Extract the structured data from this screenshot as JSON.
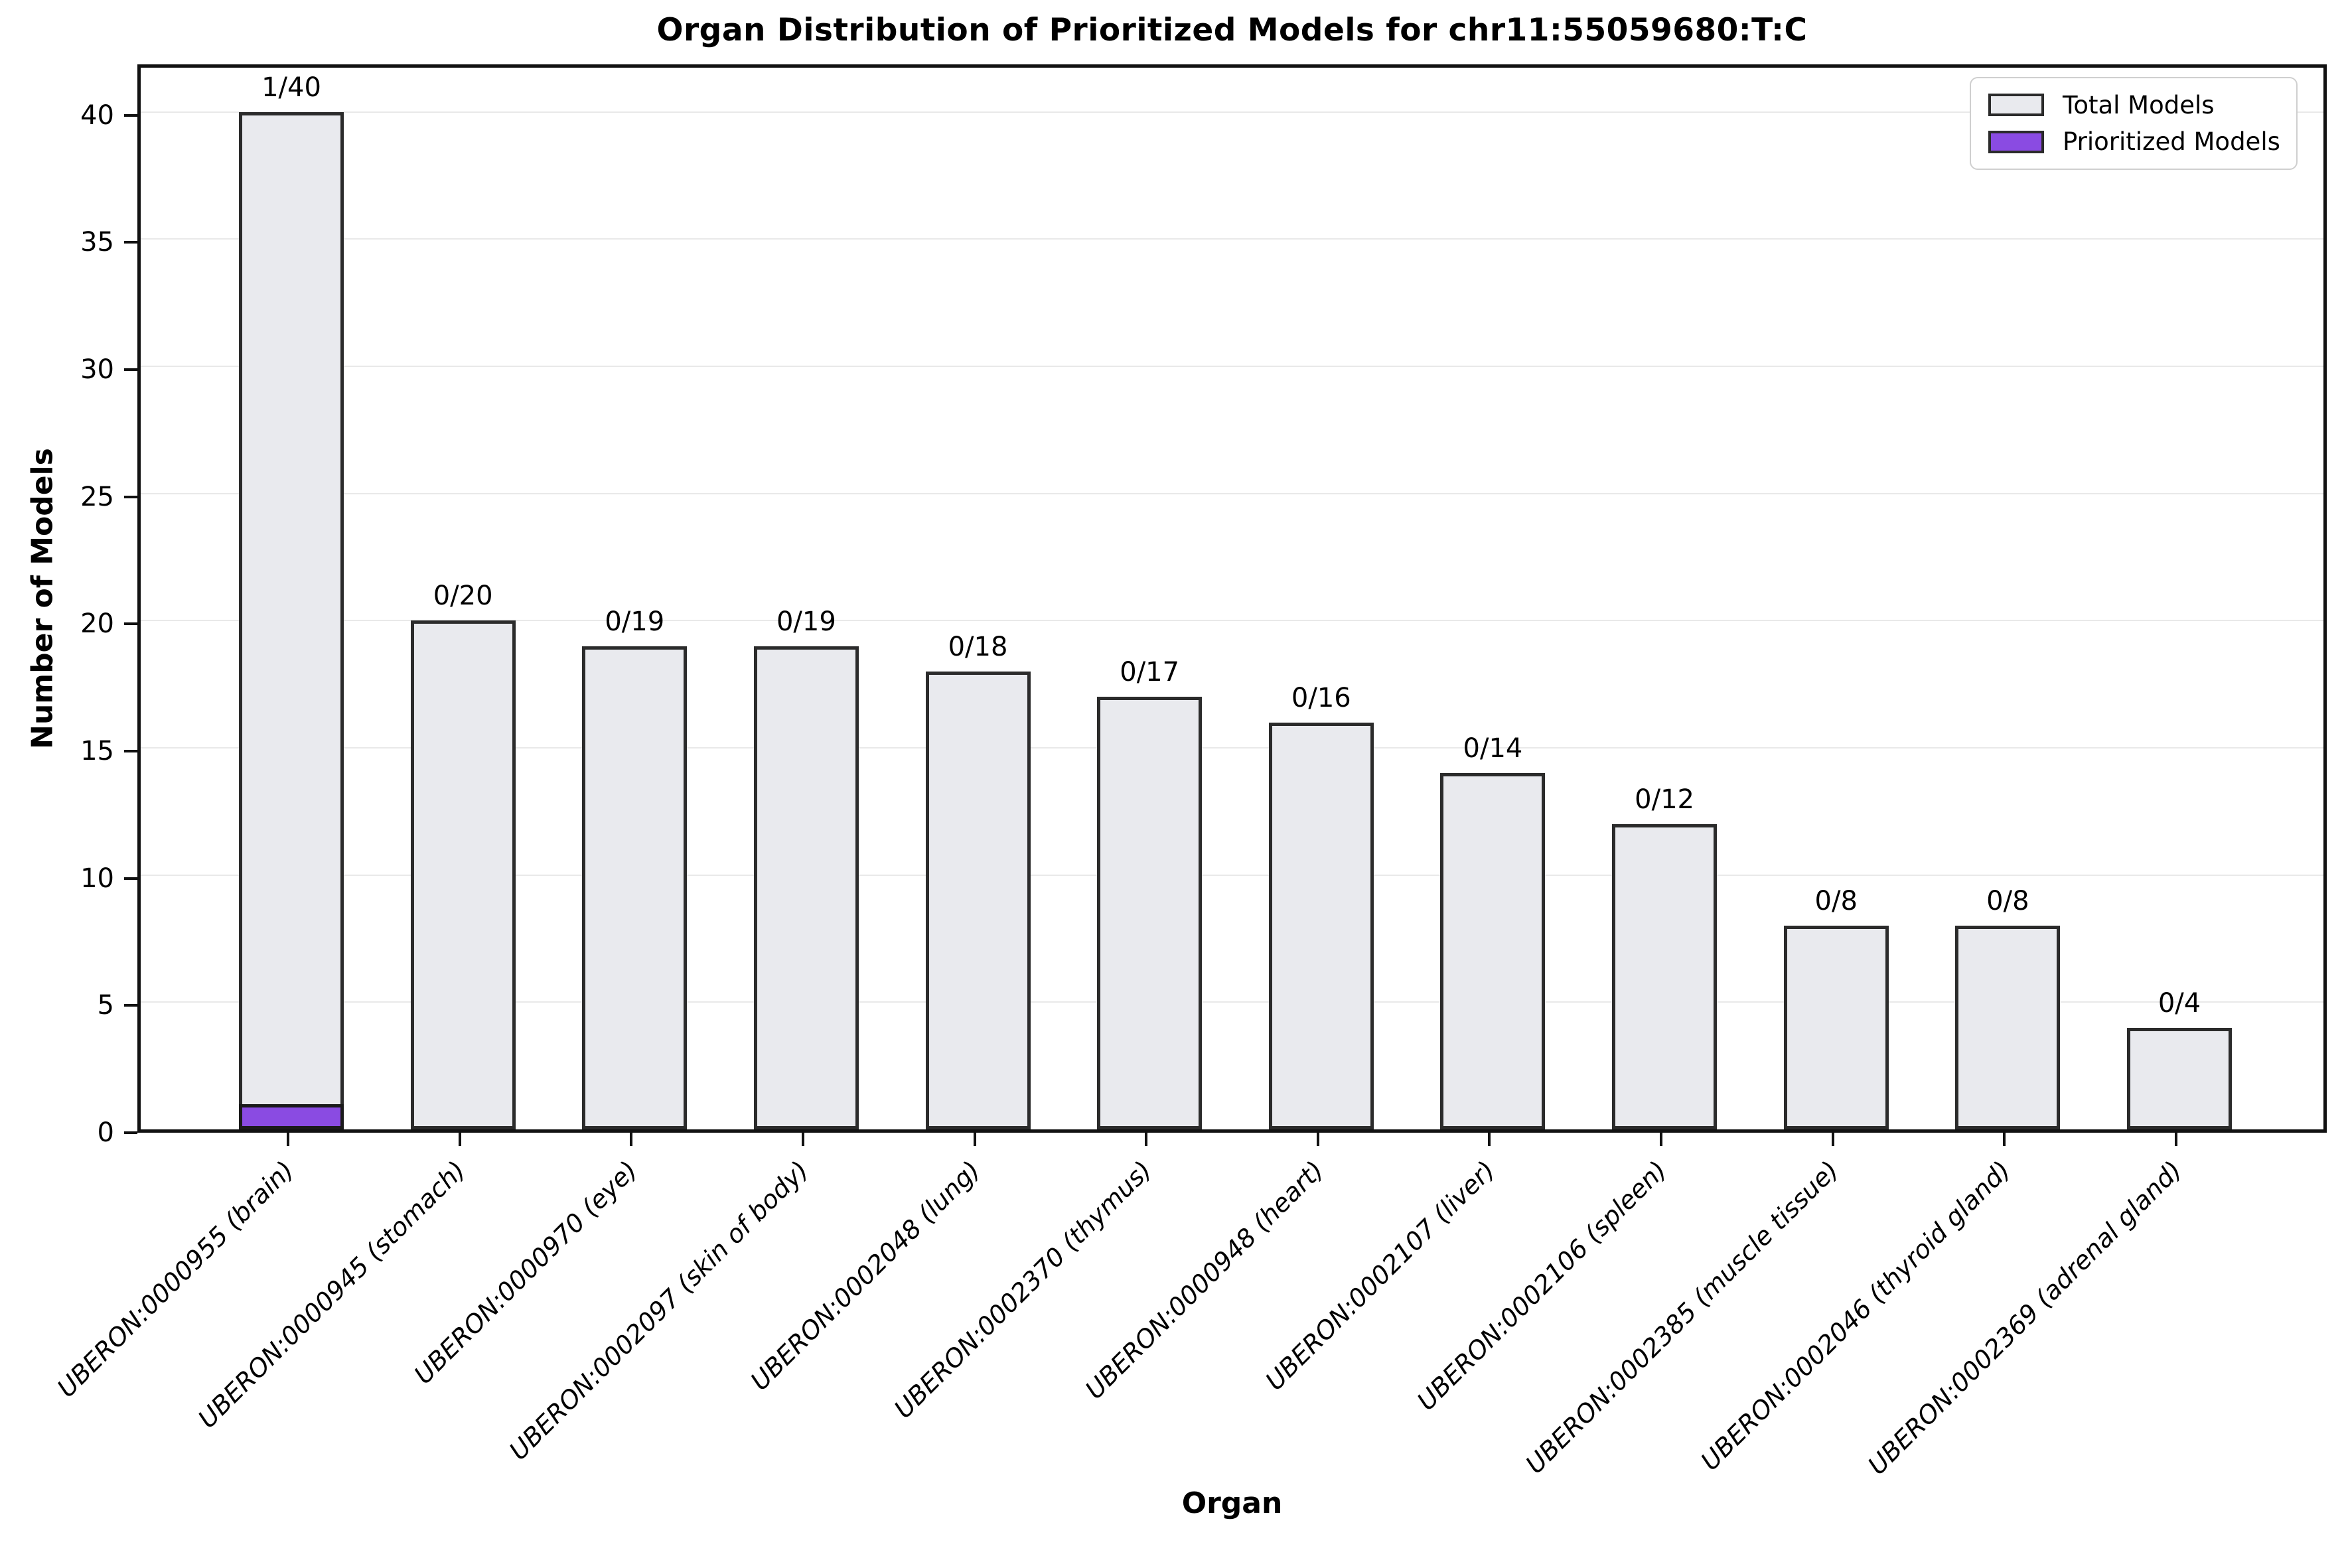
{
  "chart_data": {
    "type": "bar",
    "title": "Organ Distribution of Prioritized Models for chr11:55059680:T:C",
    "xlabel": "Organ",
    "ylabel": "Number of Models",
    "ylim": [
      0,
      42
    ],
    "yticks": [
      0,
      5,
      10,
      15,
      20,
      25,
      30,
      35,
      40
    ],
    "grid": "horizontal",
    "legend_position": "upper right",
    "categories": [
      "UBERON:0000955 (brain)",
      "UBERON:0000945 (stomach)",
      "UBERON:0000970 (eye)",
      "UBERON:0002097 (skin of body)",
      "UBERON:0002048 (lung)",
      "UBERON:0002370 (thymus)",
      "UBERON:0000948 (heart)",
      "UBERON:0002107 (liver)",
      "UBERON:0002106 (spleen)",
      "UBERON:0002385 (muscle tissue)",
      "UBERON:0002046 (thyroid gland)",
      "UBERON:0002369 (adrenal gland)"
    ],
    "series": [
      {
        "name": "Total Models",
        "color": "#e9eaee",
        "edge_color": "#2b2b2b",
        "values": [
          40,
          20,
          19,
          19,
          18,
          17,
          16,
          14,
          12,
          8,
          8,
          4
        ]
      },
      {
        "name": "Prioritized Models",
        "color": "#8a4be2",
        "edge_color": "#1a1a1a",
        "values": [
          1,
          0,
          0,
          0,
          0,
          0,
          0,
          0,
          0,
          0,
          0,
          0
        ]
      }
    ],
    "bar_labels": [
      "1/40",
      "0/20",
      "0/19",
      "0/19",
      "0/18",
      "0/17",
      "0/16",
      "0/14",
      "0/12",
      "0/8",
      "0/8",
      "0/4"
    ]
  }
}
